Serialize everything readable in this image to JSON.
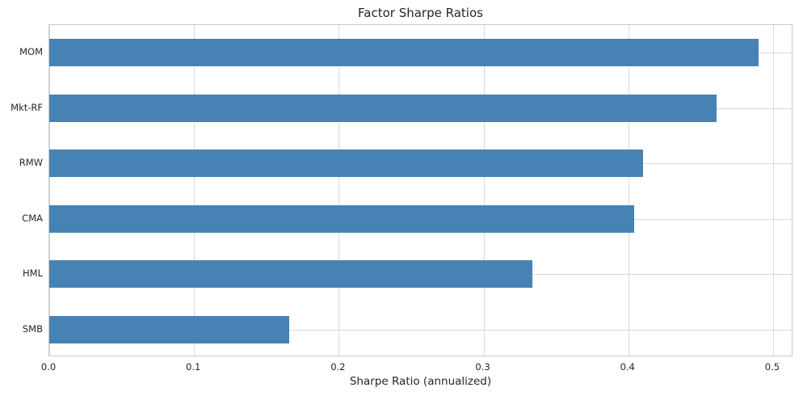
{
  "chart_data": {
    "type": "bar",
    "orientation": "horizontal",
    "title": "Factor Sharpe Ratios",
    "xlabel": "Sharpe Ratio (annualized)",
    "ylabel": "",
    "categories": [
      "MOM",
      "Mkt-RF",
      "RMW",
      "CMA",
      "HML",
      "SMB"
    ],
    "values": [
      0.49,
      0.461,
      0.41,
      0.404,
      0.334,
      0.166
    ],
    "xlim": [
      0,
      0.514
    ],
    "xticks": [
      "0.0",
      "0.1",
      "0.2",
      "0.3",
      "0.4",
      "0.5"
    ],
    "xtick_values": [
      0.0,
      0.1,
      0.2,
      0.3,
      0.4,
      0.5
    ],
    "grid": true,
    "legend": false,
    "bar_color": "#4682b4",
    "grid_color": "#d9d9d9",
    "text_color": "#262626",
    "background_color": "#ffffff"
  }
}
